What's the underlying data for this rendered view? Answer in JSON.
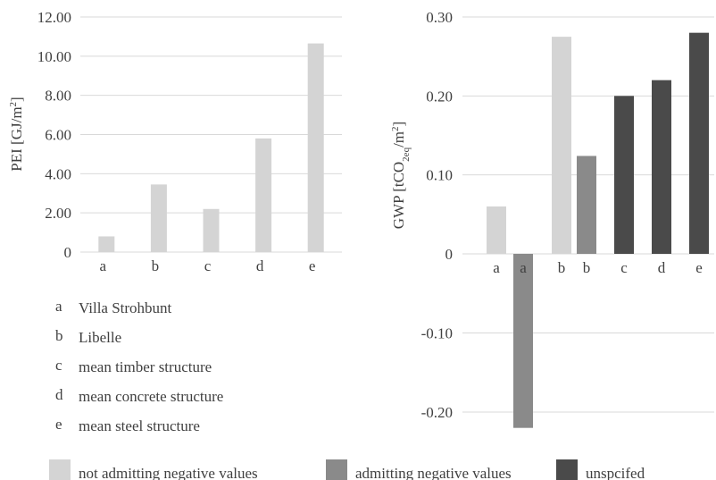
{
  "chart_data": [
    {
      "type": "bar",
      "ylabel_main": "PEI [GJ/m",
      "ylabel_sup": "2",
      "ylabel_end": "]",
      "ylim": [
        0,
        12
      ],
      "grid": true,
      "yticks": [
        "0",
        "2.00",
        "4.00",
        "6.00",
        "8.00",
        "10.00",
        "12.00"
      ],
      "ytick_values": [
        0,
        2,
        4,
        6,
        8,
        10,
        12
      ],
      "bars": [
        {
          "label": "a",
          "value": 0.8,
          "group": "not admitting negative values"
        },
        {
          "label": "b",
          "value": 3.45,
          "group": "not admitting negative values"
        },
        {
          "label": "c",
          "value": 2.2,
          "group": "not admitting negative values"
        },
        {
          "label": "d",
          "value": 5.8,
          "group": "not admitting negative values"
        },
        {
          "label": "e",
          "value": 10.65,
          "group": "not admitting negative values"
        }
      ]
    },
    {
      "type": "bar",
      "ylabel_pre": "GWP [tCO",
      "ylabel_sub": "2eq",
      "ylabel_mid": "/m",
      "ylabel_sup": "2",
      "ylabel_end": "]",
      "ylim": [
        -0.2,
        0.3
      ],
      "grid": true,
      "yticks": [
        "-0.20",
        "-0.10",
        "0",
        "0.10",
        "0.20",
        "0.30"
      ],
      "ytick_values": [
        -0.2,
        -0.1,
        0,
        0.1,
        0.2,
        0.3
      ],
      "bars": [
        {
          "label": "a",
          "value": 0.06,
          "group": "not admitting negative values"
        },
        {
          "label": "a",
          "value": -0.22,
          "group": "admitting negative values"
        },
        {
          "label": "b",
          "value": 0.275,
          "group": "not admitting negative values"
        },
        {
          "label": "b",
          "value": 0.124,
          "group": "admitting negative values"
        },
        {
          "label": "c",
          "value": 0.2,
          "group": "unspcifed"
        },
        {
          "label": "d",
          "value": 0.22,
          "group": "unspcifed"
        },
        {
          "label": "e",
          "value": 0.28,
          "group": "unspcifed"
        }
      ]
    }
  ],
  "definitions": [
    {
      "key": "a",
      "text": "Villa Strohbunt"
    },
    {
      "key": "b",
      "text": "Libelle"
    },
    {
      "key": "c",
      "text": "mean timber structure"
    },
    {
      "key": "d",
      "text": "mean concrete structure"
    },
    {
      "key": "e",
      "text": "mean steel structure"
    }
  ],
  "legend": [
    {
      "label": "not admitting negative values",
      "color": "#d4d4d4"
    },
    {
      "label": "admitting negative values",
      "color": "#8a8a8a"
    },
    {
      "label": "unspcifed",
      "color": "#4a4a4a"
    }
  ],
  "colors": {
    "grid": "#d9d9d9",
    "text": "#404040"
  }
}
